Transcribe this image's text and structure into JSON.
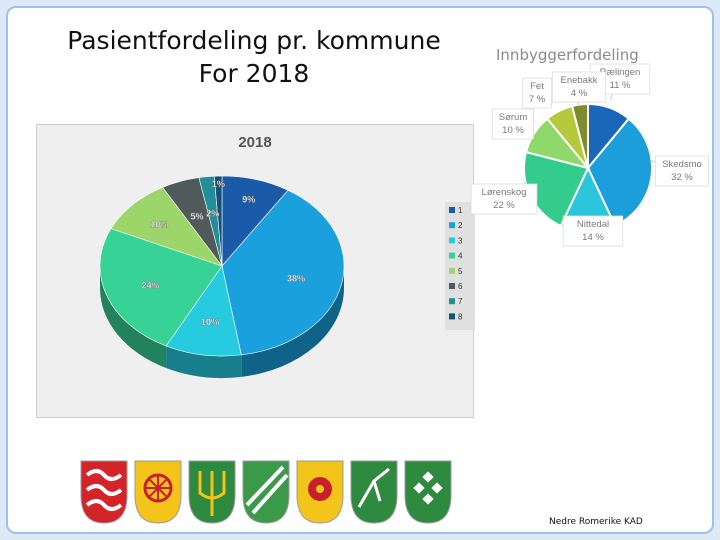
{
  "slide": {
    "title_line1": "Pasientfordeling pr. kommune",
    "title_line2": "For 2018",
    "footer": "Nedre Romerike KAD"
  },
  "colors": {
    "s1": "#1a5aa8",
    "s2": "#1aa0dc",
    "s3": "#26cbe0",
    "s4": "#36d296",
    "s5": "#9cd66a",
    "s6": "#505a5a",
    "s7": "#1f8f9a",
    "s8": "#14507a"
  },
  "chart_data": [
    {
      "type": "pie",
      "title": "2018",
      "legend_position": "right",
      "categories": [
        "1",
        "2",
        "3",
        "4",
        "5",
        "6",
        "7",
        "8"
      ],
      "values": [
        9,
        38,
        10,
        24,
        10,
        5,
        2,
        1
      ],
      "data_labels": [
        "9%",
        "38%",
        "10%",
        "24%",
        "10%",
        "5%",
        "2%",
        "1%"
      ]
    },
    {
      "type": "pie",
      "title": "Innbyggerfordeling",
      "legend_position": "none",
      "categories": [
        "Rælingen",
        "Skedsmo",
        "Nittedal",
        "Lørenskog",
        "Sørum",
        "Fet",
        "Enebakk"
      ],
      "values": [
        11,
        32,
        14,
        22,
        10,
        7,
        4
      ],
      "data_labels": [
        "11 %",
        "32 %",
        "14 %",
        "22 %",
        "10 %",
        "7 %",
        "4 %"
      ]
    }
  ],
  "logos": [
    {
      "name": "lorenskog-coat-of-arms",
      "bg": "#d4242a",
      "fg": "#ffffff"
    },
    {
      "name": "ralingen-coat-of-arms",
      "bg": "#f3c41a",
      "fg": "#c8202a"
    },
    {
      "name": "nittedal-coat-of-arms",
      "bg": "#2e8a3e",
      "fg": "#f3c41a"
    },
    {
      "name": "skedsmo-coat-of-arms",
      "bg": "#3a9a4a",
      "fg": "#ffffff"
    },
    {
      "name": "enebakk-coat-of-arms",
      "bg": "#f3c41a",
      "fg": "#c8202a"
    },
    {
      "name": "sorum-coat-of-arms",
      "bg": "#2e8a3e",
      "fg": "#ffffff"
    },
    {
      "name": "fet-coat-of-arms",
      "bg": "#2e8a3e",
      "fg": "#ffffff"
    }
  ]
}
